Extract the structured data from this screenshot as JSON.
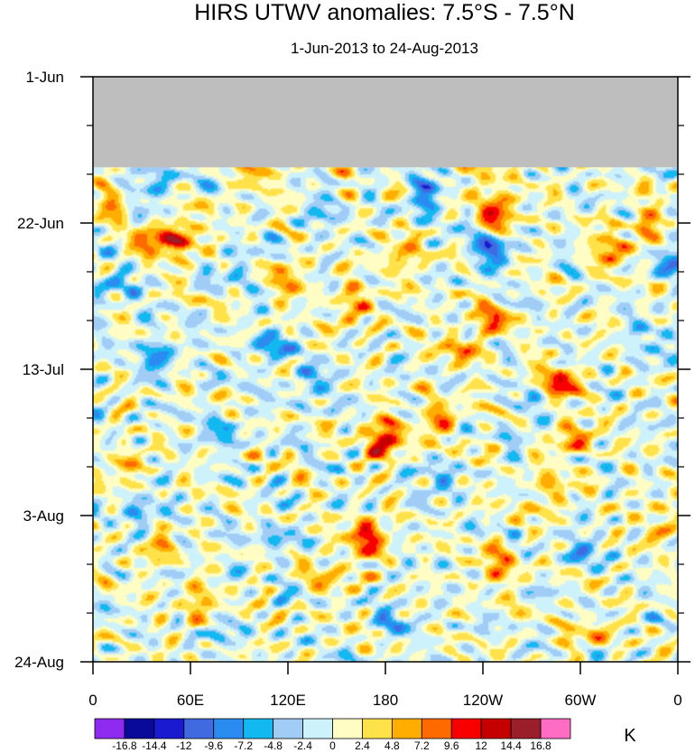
{
  "chart_data": {
    "type": "heatmap",
    "title": "HIRS UTWV anomalies: 7.5°S - 7.5°N",
    "subtitle": "1-Jun-2013 to 24-Aug-2013",
    "x_axis": {
      "labels": [
        "0",
        "60E",
        "120E",
        "180",
        "120W",
        "60W",
        "0"
      ],
      "longitudes": [
        0,
        60,
        120,
        180,
        240,
        300,
        360
      ],
      "range": [
        0,
        360
      ]
    },
    "y_axis": {
      "labels": [
        "1-Jun",
        "22-Jun",
        "13-Jul",
        "3-Aug",
        "24-Aug"
      ],
      "day_offsets": [
        0,
        21,
        42,
        63,
        84
      ],
      "range_days": [
        0,
        84
      ],
      "direction": "top-to-bottom"
    },
    "missing_data": {
      "period": "1-Jun-2013 to ~13-Jun-2013",
      "day_range": [
        0,
        13
      ],
      "color": "#bebebe"
    },
    "contour_levels": [
      -16.8,
      -14.4,
      -12,
      -9.6,
      -7.2,
      -4.8,
      -2.4,
      0,
      2.4,
      4.8,
      7.2,
      9.6,
      12,
      14.4,
      16.8
    ],
    "colorbar_labels": [
      "-16.8",
      "-14.4",
      "-12",
      "-9.6",
      "-7.2",
      "-4.8",
      "-2.4",
      "0",
      "2.4",
      "4.8",
      "7.2",
      "9.6",
      "12",
      "14.4",
      "16.8"
    ],
    "palette": [
      "#8f2af0",
      "#0a0a9a",
      "#1a1ad0",
      "#3f6ae0",
      "#2a8cf0",
      "#12b8f0",
      "#a0ccf5",
      "#cdf2fb",
      "#fffcc4",
      "#ffe14a",
      "#ffae00",
      "#ff6a00",
      "#f80000",
      "#c40000",
      "#9a1f2a",
      "#ff6cc4"
    ],
    "units": "K",
    "hotspots": [
      {
        "lon": 180,
        "day": 52,
        "value": 13.5
      },
      {
        "lon": 170,
        "day": 66,
        "value": 11
      },
      {
        "lon": 250,
        "day": 19,
        "value": 11
      },
      {
        "lon": 55,
        "day": 23,
        "value": 10
      },
      {
        "lon": 288,
        "day": 44,
        "value": 10
      },
      {
        "lon": 245,
        "day": 35,
        "value": 7.5
      },
      {
        "lon": 295,
        "day": 52,
        "value": 8
      },
      {
        "lon": 215,
        "day": 49,
        "value": 7
      },
      {
        "lon": 35,
        "day": 24,
        "value": 8
      },
      {
        "lon": 120,
        "day": 29,
        "value": 6
      },
      {
        "lon": 250,
        "day": 70,
        "value": 7.5
      },
      {
        "lon": 320,
        "day": 25,
        "value": 7.5
      },
      {
        "lon": 65,
        "day": 76,
        "value": 6.5
      },
      {
        "lon": 160,
        "day": 33,
        "value": 7
      },
      {
        "lon": 190,
        "day": 26,
        "value": 6.5
      },
      {
        "lon": 225,
        "day": 39,
        "value": 6
      },
      {
        "lon": 340,
        "day": 21,
        "value": 6
      },
      {
        "lon": 350,
        "day": 64,
        "value": 6
      },
      {
        "lon": 22,
        "day": 56,
        "value": 5
      },
      {
        "lon": 150,
        "day": 71,
        "value": 5.5
      },
      {
        "lon": 240,
        "day": 13,
        "value": 6
      },
      {
        "lon": 280,
        "day": 60,
        "value": 6
      },
      {
        "lon": 10,
        "day": 18,
        "value": 5
      },
      {
        "lon": 100,
        "day": 15,
        "value": 4.5
      },
      {
        "lon": 305,
        "day": 80,
        "value": 5
      },
      {
        "lon": 40,
        "day": 68,
        "value": 5
      }
    ],
    "coldspots": [
      {
        "lon": 245,
        "day": 25,
        "value": -10
      },
      {
        "lon": 40,
        "day": 40,
        "value": -7.5
      },
      {
        "lon": 110,
        "day": 39,
        "value": -7
      },
      {
        "lon": 205,
        "day": 17,
        "value": -8
      },
      {
        "lon": 80,
        "day": 51,
        "value": -5
      },
      {
        "lon": 15,
        "day": 30,
        "value": -6.5
      },
      {
        "lon": 135,
        "day": 44,
        "value": -5.5
      },
      {
        "lon": 300,
        "day": 68,
        "value": -5.5
      },
      {
        "lon": 210,
        "day": 58,
        "value": -5
      },
      {
        "lon": 30,
        "day": 62,
        "value": -6
      },
      {
        "lon": 345,
        "day": 38,
        "value": -5
      },
      {
        "lon": 110,
        "day": 66,
        "value": -4.5
      },
      {
        "lon": 355,
        "day": 27,
        "value": -6
      },
      {
        "lon": 40,
        "day": 15,
        "value": -7
      },
      {
        "lon": 185,
        "day": 78,
        "value": -5
      },
      {
        "lon": 270,
        "day": 49,
        "value": -4
      },
      {
        "lon": 140,
        "day": 20,
        "value": -4
      },
      {
        "lon": 90,
        "day": 27,
        "value": -4.5
      },
      {
        "lon": 75,
        "day": 80,
        "value": -4
      }
    ]
  }
}
